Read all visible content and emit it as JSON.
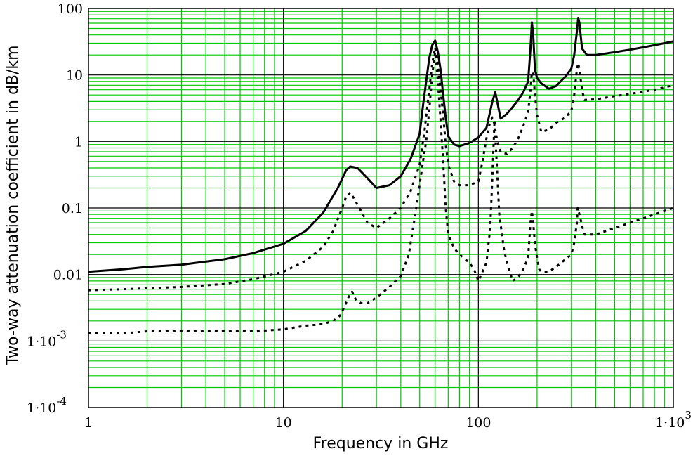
{
  "chart_data": {
    "type": "line",
    "xlabel": "Frequency in GHz",
    "ylabel": "Two-way attenuation coefficient in dB/km",
    "x_scale": "log",
    "y_scale": "log",
    "xlim": [
      1,
      1000
    ],
    "ylim": [
      0.0001,
      100
    ],
    "grid": true,
    "colors": {
      "major_grid": "#000000",
      "minor_grid": "#00c800",
      "series": "#000000"
    },
    "x_ticks": [
      {
        "value": 1,
        "label": "1"
      },
      {
        "value": 10,
        "label": "10"
      },
      {
        "value": 100,
        "label": "100"
      },
      {
        "value": 1000,
        "label": "1·10",
        "sup": "3"
      }
    ],
    "y_ticks": [
      {
        "value": 100,
        "label": "100"
      },
      {
        "value": 10,
        "label": "10"
      },
      {
        "value": 1,
        "label": "1"
      },
      {
        "value": 0.1,
        "label": "0.1"
      },
      {
        "value": 0.01,
        "label": "0.01"
      },
      {
        "value": 0.001,
        "label": "1·10",
        "sup": "-3"
      },
      {
        "value": 0.0001,
        "label": "1·10",
        "sup": "-4"
      }
    ],
    "series": [
      {
        "style": "solid",
        "x": [
          1,
          1.5,
          2,
          3,
          5,
          7,
          10,
          13,
          16,
          19,
          21,
          22,
          24,
          27,
          30,
          35,
          40,
          45,
          50,
          52,
          54,
          56,
          58,
          60,
          62,
          64,
          66,
          68,
          70,
          75,
          80,
          90,
          100,
          110,
          118,
          122,
          126,
          130,
          140,
          150,
          160,
          170,
          180,
          185,
          188,
          191,
          195,
          200,
          210,
          230,
          250,
          280,
          300,
          310,
          320,
          325,
          330,
          340,
          360,
          400,
          500,
          600,
          700,
          800,
          900,
          1000
        ],
        "y": [
          0.011,
          0.012,
          0.013,
          0.014,
          0.017,
          0.021,
          0.029,
          0.045,
          0.085,
          0.2,
          0.37,
          0.42,
          0.4,
          0.28,
          0.2,
          0.22,
          0.3,
          0.55,
          1.3,
          3.5,
          8,
          18,
          28,
          33,
          22,
          12,
          5,
          2.3,
          1.2,
          0.9,
          0.85,
          0.95,
          1.15,
          1.6,
          4,
          5.5,
          3.5,
          2.2,
          2.6,
          3.3,
          4.2,
          5.5,
          8,
          25,
          62,
          40,
          12,
          9,
          7.5,
          6.2,
          6.8,
          9.5,
          12.5,
          20,
          45,
          72,
          60,
          25,
          20,
          20,
          22,
          24,
          26,
          28,
          30,
          32
        ]
      },
      {
        "style": "dotted",
        "x": [
          1,
          1.5,
          2,
          3,
          5,
          7,
          10,
          13,
          16,
          18,
          20,
          21,
          22,
          23,
          25,
          27,
          30,
          35,
          40,
          45,
          50,
          53,
          56,
          58,
          60,
          62,
          64,
          66,
          68,
          70,
          75,
          80,
          90,
          100,
          105,
          110,
          115,
          118,
          121,
          125,
          130,
          140,
          150,
          160,
          170,
          180,
          185,
          188,
          190,
          192,
          195,
          200,
          210,
          230,
          250,
          280,
          300,
          310,
          320,
          325,
          330,
          340,
          350,
          400,
          500,
          600,
          700,
          800,
          900,
          1000
        ],
        "y": [
          0.0058,
          0.006,
          0.0062,
          0.0065,
          0.0072,
          0.0085,
          0.011,
          0.016,
          0.026,
          0.045,
          0.1,
          0.15,
          0.17,
          0.14,
          0.09,
          0.06,
          0.05,
          0.07,
          0.1,
          0.18,
          0.45,
          1.5,
          6,
          15,
          26,
          14,
          6,
          2.5,
          0.9,
          0.45,
          0.25,
          0.22,
          0.22,
          0.25,
          0.5,
          1.1,
          2,
          2.3,
          1.8,
          1.0,
          0.7,
          0.65,
          0.8,
          1.1,
          1.7,
          2.8,
          6,
          11,
          11,
          9,
          5,
          2.5,
          1.4,
          1.5,
          1.9,
          2.3,
          2.9,
          5,
          12,
          15,
          12,
          6,
          4.2,
          4.3,
          4.8,
          5.2,
          5.6,
          6,
          6.5,
          7
        ]
      },
      {
        "style": "dotted",
        "x": [
          1,
          1.5,
          2,
          3,
          5,
          7,
          10,
          13,
          16,
          18,
          19.5,
          20.5,
          21.5,
          22.5,
          23.5,
          25,
          27,
          30,
          35,
          40,
          44,
          48,
          52,
          54,
          56,
          58,
          60,
          62,
          64,
          66,
          68,
          70,
          75,
          80,
          90,
          95,
          100,
          105,
          110,
          115,
          118,
          121,
          124,
          128,
          135,
          140,
          150,
          160,
          170,
          180,
          185,
          188,
          191,
          195,
          200,
          205,
          210,
          230,
          250,
          280,
          300,
          310,
          320,
          323,
          330,
          340,
          350,
          400,
          500,
          600,
          700,
          800,
          900,
          1000
        ],
        "y": [
          0.0013,
          0.0013,
          0.0014,
          0.0014,
          0.0014,
          0.0014,
          0.0015,
          0.0017,
          0.0018,
          0.002,
          0.0024,
          0.0032,
          0.0045,
          0.0055,
          0.0042,
          0.0037,
          0.0037,
          0.0045,
          0.0065,
          0.0095,
          0.02,
          0.1,
          0.5,
          1,
          3,
          10,
          22,
          8,
          2,
          0.5,
          0.1,
          0.04,
          0.025,
          0.02,
          0.015,
          0.012,
          0.008,
          0.011,
          0.015,
          0.05,
          0.3,
          2.1,
          0.5,
          0.08,
          0.025,
          0.015,
          0.008,
          0.009,
          0.012,
          0.018,
          0.06,
          0.09,
          0.06,
          0.028,
          0.018,
          0.012,
          0.011,
          0.011,
          0.013,
          0.017,
          0.02,
          0.03,
          0.06,
          0.1,
          0.08,
          0.055,
          0.04,
          0.04,
          0.05,
          0.06,
          0.07,
          0.08,
          0.09,
          0.1
        ]
      }
    ]
  }
}
